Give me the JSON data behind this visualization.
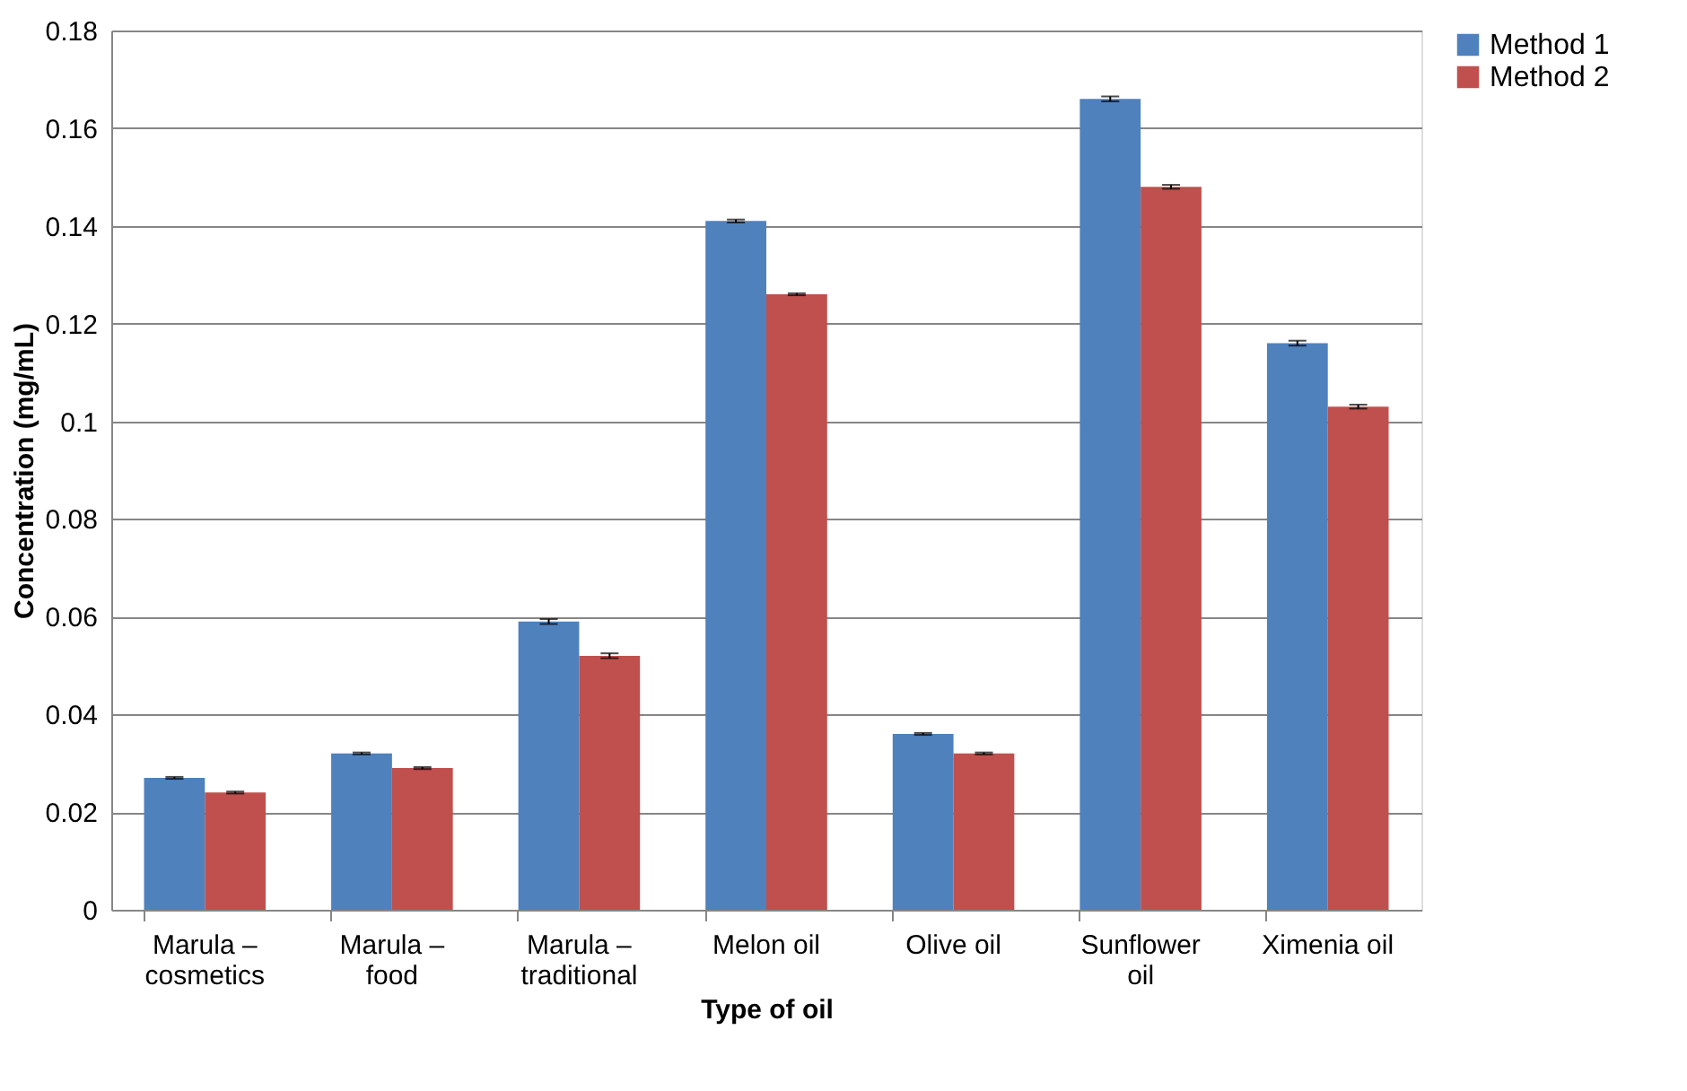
{
  "chart_data": {
    "type": "bar",
    "xlabel": "Type of oil",
    "ylabel": "Concentration (mg/mL)",
    "categories": [
      "Marula –\ncosmetics",
      "Marula –\nfood",
      "Marula –\ntraditional",
      "Melon oil",
      "Olive oil",
      "Sunflower\noil",
      "Ximenia oil"
    ],
    "series": [
      {
        "name": "Method 1",
        "color": "#4f81bd",
        "values": [
          0.027,
          0.032,
          0.059,
          0.141,
          0.036,
          0.166,
          0.116
        ],
        "errors": [
          0.0002,
          0.0002,
          0.0005,
          0.0003,
          0.0002,
          0.0005,
          0.0005
        ]
      },
      {
        "name": "Method 2",
        "color": "#c0504d",
        "values": [
          0.024,
          0.029,
          0.052,
          0.126,
          0.032,
          0.148,
          0.103
        ],
        "errors": [
          0.0002,
          0.0002,
          0.0005,
          0.0002,
          0.0002,
          0.0004,
          0.0004
        ]
      }
    ],
    "ylim": [
      0,
      0.18
    ],
    "yticks": [
      0,
      0.02,
      0.04,
      0.06,
      0.08,
      0.1,
      0.12,
      0.14,
      0.16,
      0.18
    ],
    "grid": "y",
    "legend": "right"
  }
}
